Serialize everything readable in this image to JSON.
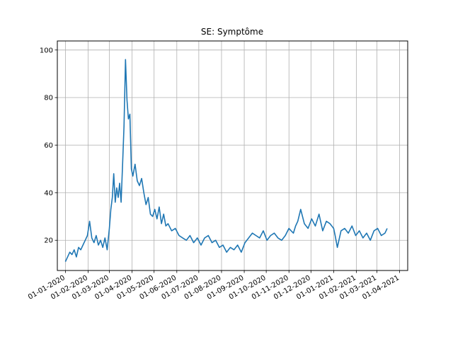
{
  "chart_data": {
    "type": "line",
    "title": "SE: Symptôme",
    "xlabel": "",
    "ylabel": "",
    "grid": true,
    "x_range": [
      "2019-12-21",
      "2021-04-12"
    ],
    "ylim": [
      7.3,
      103.8
    ],
    "yticks": [
      20,
      40,
      60,
      80,
      100
    ],
    "xtick_labels": [
      "01-01-2020",
      "01-02-2020",
      "01-03-2020",
      "01-04-2020",
      "01-05-2020",
      "01-06-2020",
      "01-07-2020",
      "01-08-2020",
      "01-09-2020",
      "01-10-2020",
      "01-11-2020",
      "01-12-2020",
      "01-01-2021",
      "01-02-2021",
      "01-03-2021",
      "01-04-2021"
    ],
    "color": "#1f77b4",
    "series": [
      {
        "x": [
          "2020-01-01",
          "2020-01-04",
          "2020-01-07",
          "2020-01-10",
          "2020-01-13",
          "2020-01-16",
          "2020-01-19",
          "2020-01-22",
          "2020-01-25",
          "2020-01-28",
          "2020-01-31",
          "2020-02-03",
          "2020-02-06",
          "2020-02-09",
          "2020-02-12",
          "2020-02-15",
          "2020-02-18",
          "2020-02-21",
          "2020-02-24",
          "2020-02-27",
          "2020-03-01",
          "2020-03-03",
          "2020-03-05",
          "2020-03-07",
          "2020-03-09",
          "2020-03-11",
          "2020-03-13",
          "2020-03-15",
          "2020-03-17",
          "2020-03-19",
          "2020-03-21",
          "2020-03-23",
          "2020-03-25",
          "2020-03-27",
          "2020-03-29",
          "2020-03-31",
          "2020-04-02",
          "2020-04-05",
          "2020-04-08",
          "2020-04-11",
          "2020-04-14",
          "2020-04-17",
          "2020-04-20",
          "2020-04-23",
          "2020-04-26",
          "2020-04-29",
          "2020-05-02",
          "2020-05-05",
          "2020-05-08",
          "2020-05-11",
          "2020-05-14",
          "2020-05-17",
          "2020-05-20",
          "2020-05-25",
          "2020-05-30",
          "2020-06-04",
          "2020-06-09",
          "2020-06-14",
          "2020-06-19",
          "2020-06-24",
          "2020-06-29",
          "2020-07-04",
          "2020-07-09",
          "2020-07-14",
          "2020-07-19",
          "2020-07-24",
          "2020-07-29",
          "2020-08-03",
          "2020-08-08",
          "2020-08-13",
          "2020-08-18",
          "2020-08-23",
          "2020-08-28",
          "2020-09-02",
          "2020-09-07",
          "2020-09-12",
          "2020-09-17",
          "2020-09-22",
          "2020-09-27",
          "2020-10-02",
          "2020-10-07",
          "2020-10-12",
          "2020-10-17",
          "2020-10-22",
          "2020-10-27",
          "2020-11-01",
          "2020-11-04",
          "2020-11-07",
          "2020-11-10",
          "2020-11-13",
          "2020-11-17",
          "2020-11-22",
          "2020-11-27",
          "2020-12-02",
          "2020-12-07",
          "2020-12-12",
          "2020-12-17",
          "2020-12-22",
          "2020-12-27",
          "2021-01-01",
          "2021-01-03",
          "2021-01-06",
          "2021-01-11",
          "2021-01-16",
          "2021-01-21",
          "2021-01-26",
          "2021-01-31",
          "2021-02-05",
          "2021-02-10",
          "2021-02-15",
          "2021-02-20",
          "2021-02-25",
          "2021-03-02",
          "2021-03-07",
          "2021-03-12",
          "2021-03-15"
        ],
        "y": [
          11,
          13,
          15,
          14,
          16,
          13,
          17,
          16,
          18,
          20,
          22,
          28,
          21,
          19,
          22,
          18,
          20,
          17,
          21,
          16,
          25,
          33,
          38,
          48,
          36,
          42,
          38,
          44,
          36,
          52,
          68,
          96,
          79,
          71,
          73,
          50,
          47,
          52,
          45,
          43,
          46,
          40,
          35,
          38,
          31,
          30,
          33,
          29,
          34,
          27,
          31,
          26,
          27,
          24,
          25,
          22,
          21,
          20,
          22,
          19,
          21,
          18,
          21,
          22,
          19,
          20,
          17,
          18,
          15,
          17,
          16,
          18,
          15,
          19,
          21,
          23,
          22,
          21,
          24,
          20,
          22,
          23,
          21,
          20,
          22,
          25,
          24,
          23,
          26,
          28,
          33,
          27,
          25,
          29,
          26,
          31,
          24,
          28,
          27,
          25,
          22,
          17,
          24,
          25,
          23,
          26,
          22,
          24,
          21,
          23,
          20,
          24,
          25,
          22,
          23,
          25
        ]
      }
    ]
  }
}
